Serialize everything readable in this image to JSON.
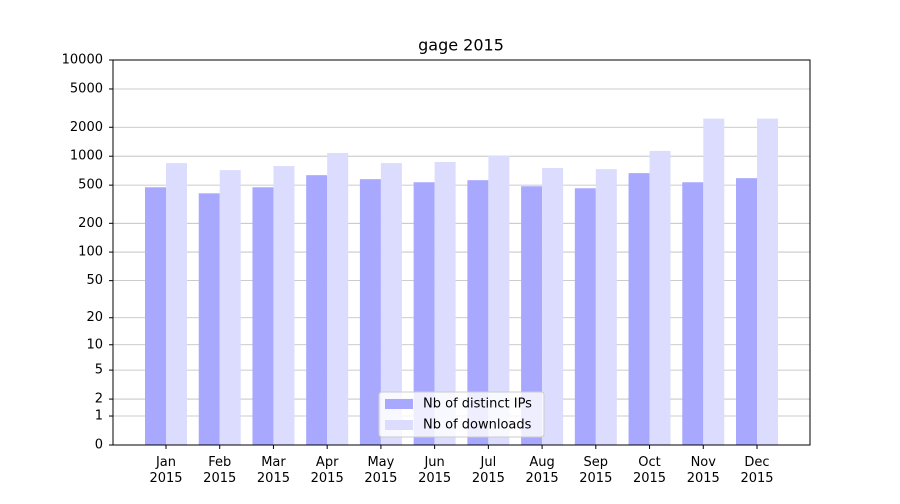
{
  "chart_data": {
    "type": "bar",
    "title": "gage 2015",
    "categories": [
      "Jan\n2015",
      "Feb\n2015",
      "Mar\n2015",
      "Apr\n2015",
      "May\n2015",
      "Jun\n2015",
      "Jul\n2015",
      "Aug\n2015",
      "Sep\n2015",
      "Oct\n2015",
      "Nov\n2015",
      "Dec\n2015"
    ],
    "series": [
      {
        "name": "Nb of distinct IPs",
        "color": "#a8a8ff",
        "values": [
          475,
          411,
          475,
          635,
          577,
          536,
          563,
          487,
          464,
          667,
          536,
          591
        ]
      },
      {
        "name": "Nb of downloads",
        "color": "#dcdcff",
        "values": [
          849,
          717,
          790,
          1081,
          849,
          870,
          1006,
          754,
          734,
          1135,
          2460,
          2460
        ]
      }
    ],
    "yscale": "log1p",
    "ylim": [
      0,
      10000
    ],
    "yticks": [
      0,
      1,
      2,
      5,
      10,
      20,
      50,
      100,
      200,
      500,
      1000,
      2000,
      5000,
      10000
    ],
    "grid": true,
    "legend": "lower center"
  }
}
